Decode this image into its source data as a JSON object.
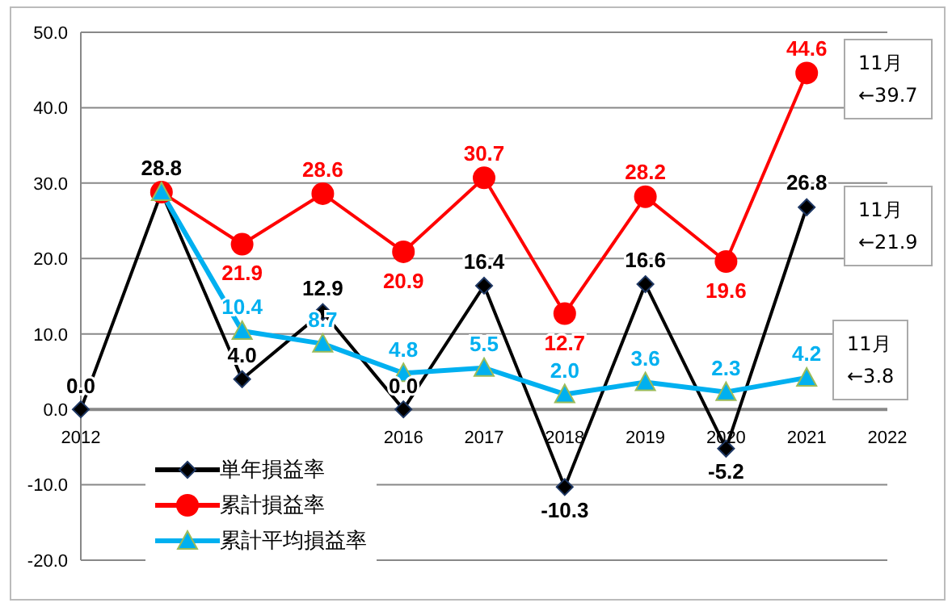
{
  "chart_data": {
    "type": "line",
    "categories": [
      "2012",
      null,
      null,
      null,
      "2016",
      "2017",
      "2018",
      "2019",
      "2020",
      "2021",
      "2022"
    ],
    "series": [
      {
        "name": "単年損益率",
        "color": "#000000",
        "marker": "diamond",
        "values": [
          0.0,
          28.8,
          4.0,
          12.9,
          0.0,
          16.4,
          -10.3,
          16.6,
          -5.2,
          26.8,
          null
        ],
        "value_labels": [
          "0.0",
          "28.8",
          "4.0",
          "12.9",
          "0.0",
          "16.4",
          "-10.3",
          "16.6",
          "-5.2",
          "26.8",
          null
        ]
      },
      {
        "name": "累計損益率",
        "color": "#ff0000",
        "marker": "circle",
        "values": [
          null,
          28.8,
          21.9,
          28.6,
          20.9,
          30.7,
          12.7,
          28.2,
          19.6,
          44.6,
          null
        ],
        "value_labels": [
          null,
          null,
          "21.9",
          "28.6",
          "20.9",
          "30.7",
          "12.7",
          "28.2",
          "19.6",
          "44.6",
          null
        ]
      },
      {
        "name": "累計平均損益率",
        "color": "#00b0f0",
        "marker": "triangle",
        "values": [
          null,
          28.8,
          10.4,
          8.7,
          4.8,
          5.5,
          2.0,
          3.6,
          2.3,
          4.2,
          null
        ],
        "value_labels": [
          null,
          null,
          "10.4",
          "8.7",
          "4.8",
          "5.5",
          "2.0",
          "3.6",
          "2.3",
          "4.2",
          null
        ]
      }
    ],
    "ylim": [
      -20,
      50
    ],
    "yticks": [
      {
        "value": -20,
        "label": "-20.0"
      },
      {
        "value": -10,
        "label": "-10.0"
      },
      {
        "value": 0,
        "label": "0.0"
      },
      {
        "value": 10,
        "label": "10.0"
      },
      {
        "value": 20,
        "label": "20.0"
      },
      {
        "value": 30,
        "label": "30.0"
      },
      {
        "value": 40,
        "label": "40.0"
      },
      {
        "value": 50,
        "label": "50.0"
      }
    ],
    "grid": "y",
    "legend": "bottom left",
    "annotations": [
      "11月\n←39.7",
      "11月\n←21.9",
      "11月\n←3.8"
    ]
  }
}
